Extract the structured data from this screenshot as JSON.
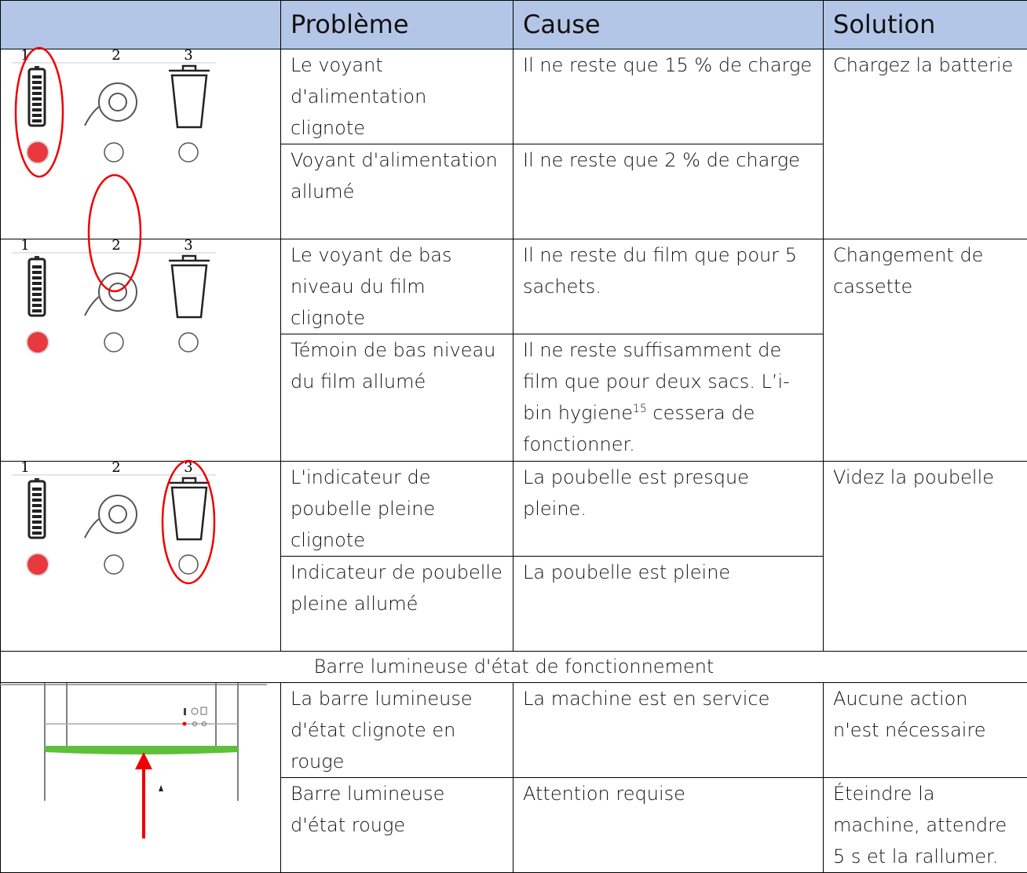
{
  "header": {
    "problem": "Problème",
    "cause": "Cause",
    "solution": "Solution"
  },
  "panel_labels": [
    "1",
    "2",
    "3"
  ],
  "groups": [
    {
      "solution": "Chargez la batterie",
      "rows": [
        {
          "problem": "Le voyant d'alimentation clignote",
          "cause": "Il ne reste que 15 % de charge"
        },
        {
          "problem": "Voyant d'alimentation allumé",
          "cause": "Il ne reste que 2 % de charge"
        }
      ]
    },
    {
      "solution": "Changement de cassette",
      "rows": [
        {
          "problem": "Le voyant de bas niveau du film clignote",
          "cause": "Il ne reste du film que pour 5 sachets."
        },
        {
          "problem": "Témoin de bas niveau du film allumé",
          "cause_parts": [
            "Il ne reste suffisamment de film que pour deux sacs. L’i-bin hygiene",
            "15",
            " cessera de fonctionner."
          ]
        }
      ]
    },
    {
      "solution": "Videz la poubelle",
      "rows": [
        {
          "problem": "L'indicateur de poubelle pleine clignote",
          "cause": "La poubelle est presque pleine."
        },
        {
          "problem": "Indicateur de poubelle pleine allumé",
          "cause": "La poubelle est pleine"
        }
      ]
    },
    {
      "section_title": "Barre lumineuse d'état de fonctionnement"
    },
    {
      "rows": [
        {
          "problem": "La barre lumineuse d'état clignote en rouge",
          "cause": "La machine est en service",
          "solution": "Aucune action n'est nécessaire"
        },
        {
          "problem": "Barre lumineuse d'état rouge",
          "cause": "Attention requise",
          "solution": "Éteindre la machine, attendre 5 s et la rallumer."
        }
      ]
    }
  ]
}
